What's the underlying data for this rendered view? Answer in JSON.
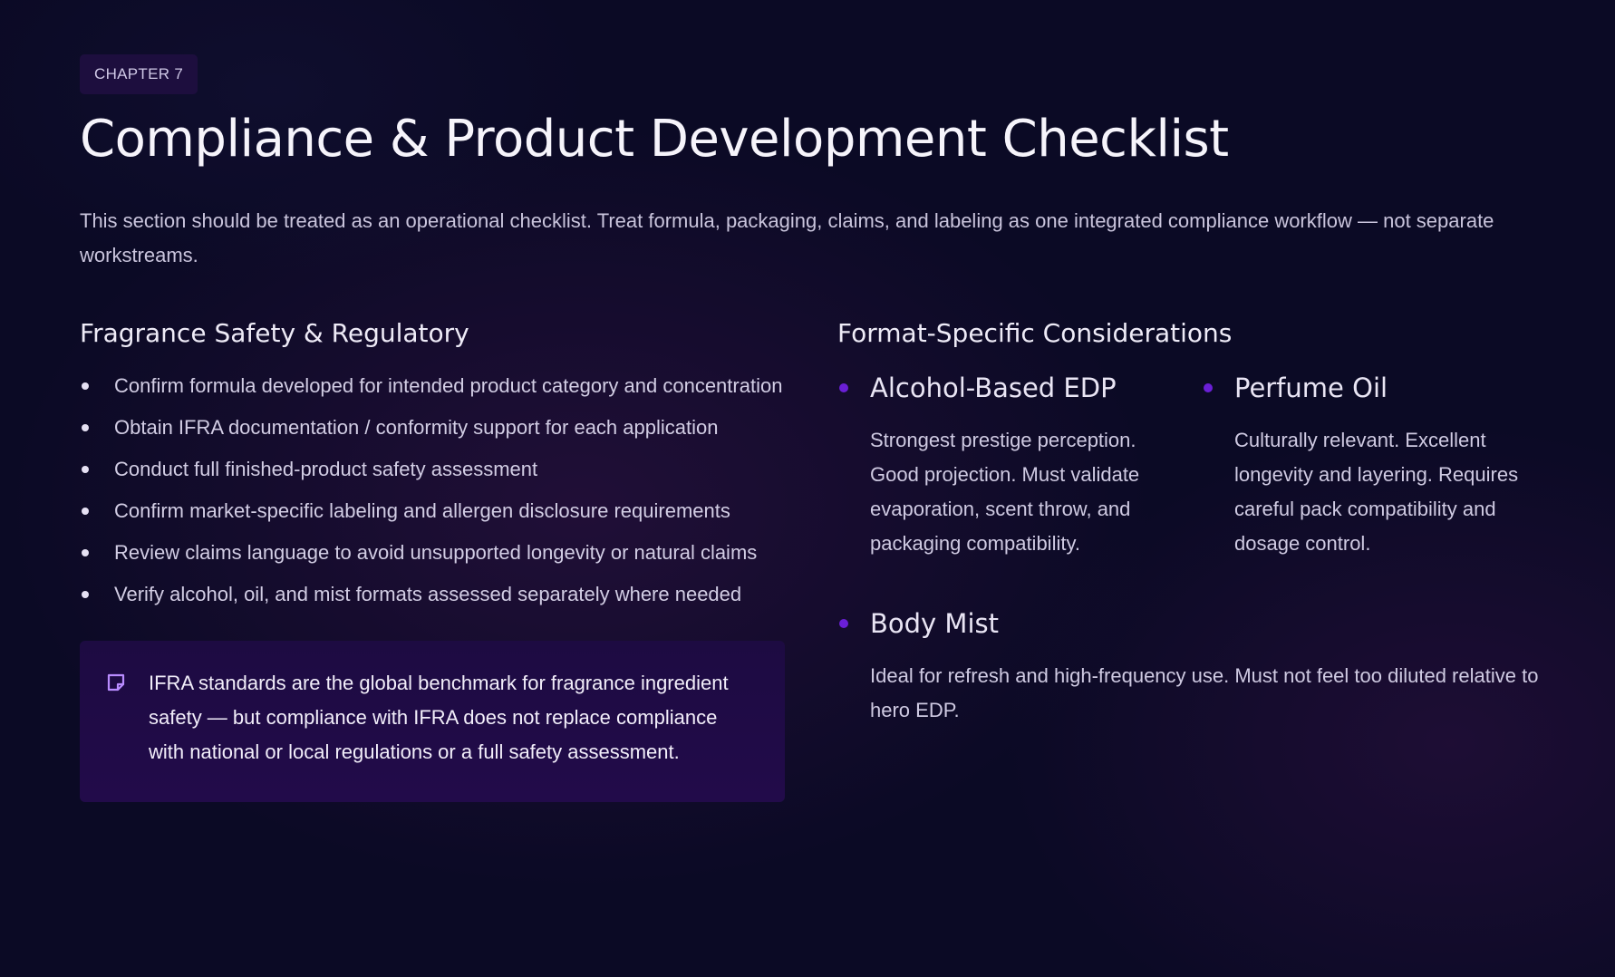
{
  "header": {
    "chapter": "CHAPTER 7",
    "title": "Compliance & Product Development Checklist",
    "intro": "This section should be treated as an operational checklist. Treat formula, packaging, claims, and labeling as one integrated compliance workflow — not separate workstreams."
  },
  "safety": {
    "heading": "Fragrance Safety & Regulatory",
    "items": [
      "Confirm formula developed for intended product category and concentration",
      "Obtain IFRA documentation / conformity support for each application",
      "Conduct full finished-product safety assessment",
      "Confirm market-specific labeling and allergen disclosure requirements",
      "Review claims language to avoid unsupported longevity or natural claims",
      "Verify alcohol, oil, and mist formats assessed separately where needed"
    ],
    "note": {
      "icon": "sticky-note-icon",
      "text": "IFRA standards are the global benchmark for fragrance ingredient safety — but compliance with IFRA does not replace compliance with national or local regulations or a full safety assessment."
    }
  },
  "formats": {
    "heading": "Format-Specific Considerations",
    "items": [
      {
        "title": "Alcohol-Based EDP",
        "description": "Strongest prestige perception. Good projection. Must validate evaporation, scent throw, and packaging compatibility."
      },
      {
        "title": "Perfume Oil",
        "description": "Culturally relevant. Excellent longevity and layering. Requires careful pack compatibility and dosage control."
      },
      {
        "title": "Body Mist",
        "description": "Ideal for refresh and high-frequency use. Must not feel too diluted relative to hero EDP."
      }
    ]
  },
  "colors": {
    "background": "#0b0a25",
    "accent": "#6a1fd6",
    "note_background": "#1f0b45",
    "note_icon": "#b98cff"
  }
}
